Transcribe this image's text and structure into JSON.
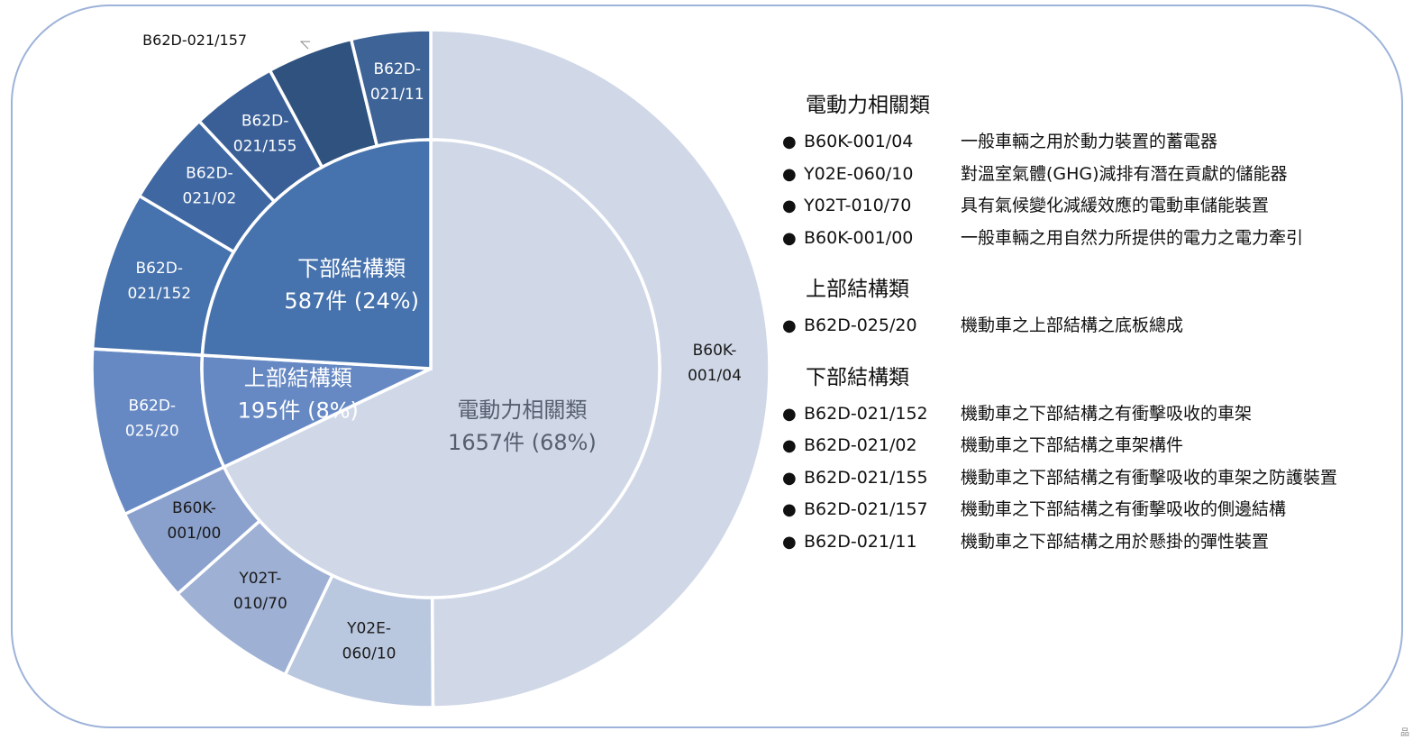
{
  "chart_data": {
    "type": "pie",
    "subtype": "sunburst-two-ring",
    "inner_ring": [
      {
        "label": "電動力相關類",
        "count_label": "1657件 (68%)",
        "value": 1657,
        "color": "#d0d8e8"
      },
      {
        "label": "上部結構類",
        "count_label": "195件 (8%)",
        "value": 195,
        "color": "#6689c4"
      },
      {
        "label": "下部結構類",
        "count_label": "587件 (24%)",
        "value": 587,
        "color": "#4672ad"
      }
    ],
    "outer_ring": [
      {
        "label": "B60K-001/04",
        "value": 1217,
        "group": 0,
        "color": "#d0d8e8"
      },
      {
        "label": "Y02E-060/10",
        "value": 175,
        "group": 0,
        "color": "#bac8df"
      },
      {
        "label": "Y02T-010/70",
        "value": 155,
        "group": 0,
        "color": "#9eb0d4"
      },
      {
        "label": "B60K-001/00",
        "value": 110,
        "group": 0,
        "color": "#8ba1cd"
      },
      {
        "label": "B62D-025/20",
        "value": 195,
        "group": 1,
        "color": "#6689c4"
      },
      {
        "label": "B62D-021/152",
        "value": 185,
        "group": 2,
        "color": "#4672ad"
      },
      {
        "label": "B62D-021/02",
        "value": 110,
        "group": 2,
        "color": "#3f67a1"
      },
      {
        "label": "B62D-021/155",
        "value": 100,
        "group": 2,
        "color": "#3a5f97"
      },
      {
        "label": "B62D-021/157",
        "value": 100,
        "group": 2,
        "color": "#2f527f"
      },
      {
        "label": "B62D-021/11",
        "value": 92,
        "group": 2,
        "color": "#3d6397"
      }
    ],
    "outer_labels_display": [
      [
        "B60K-",
        "001/04"
      ],
      [
        "Y02E-",
        "060/10"
      ],
      [
        "Y02T-",
        "010/70"
      ],
      [
        "B60K-",
        "001/00"
      ],
      [
        "B62D-",
        "025/20"
      ],
      [
        "B62D-",
        "021/152"
      ],
      [
        "B62D-",
        "021/02"
      ],
      [
        "B62D-",
        "021/155"
      ],
      [
        "B62D-021/157"
      ],
      [
        "B62D-",
        "021/11"
      ]
    ]
  },
  "legend": {
    "groups": [
      {
        "title": "電動力相關類",
        "items": [
          {
            "code": "B60K-001/04",
            "desc": "一般車輛之用於動力裝置的蓄電器"
          },
          {
            "code": "Y02E-060/10",
            "desc": "對溫室氣體(GHG)減排有潛在貢獻的儲能器"
          },
          {
            "code": "Y02T-010/70",
            "desc": "具有氣候變化減緩效應的電動車儲能裝置"
          },
          {
            "code": "B60K-001/00",
            "desc": "一般車輛之用自然力所提供的電力之電力牽引"
          }
        ]
      },
      {
        "title": "上部結構類",
        "items": [
          {
            "code": "B62D-025/20",
            "desc": "機動車之上部結構之底板總成"
          }
        ]
      },
      {
        "title": "下部結構類",
        "items": [
          {
            "code": "B62D-021/152",
            "desc": "機動車之下部結構之有衝擊吸收的車架"
          },
          {
            "code": "B62D-021/02",
            "desc": "機動車之下部結構之車架構件"
          },
          {
            "code": "B62D-021/155",
            "desc": "機動車之下部結構之有衝擊吸收的車架之防護裝置"
          },
          {
            "code": "B62D-021/157",
            "desc": "機動車之下部結構之有衝擊吸收的側邊結構"
          },
          {
            "code": "B62D-021/11",
            "desc": "機動車之下部結構之用於懸掛的彈性裝置"
          }
        ]
      }
    ]
  },
  "corner_mark": "品"
}
